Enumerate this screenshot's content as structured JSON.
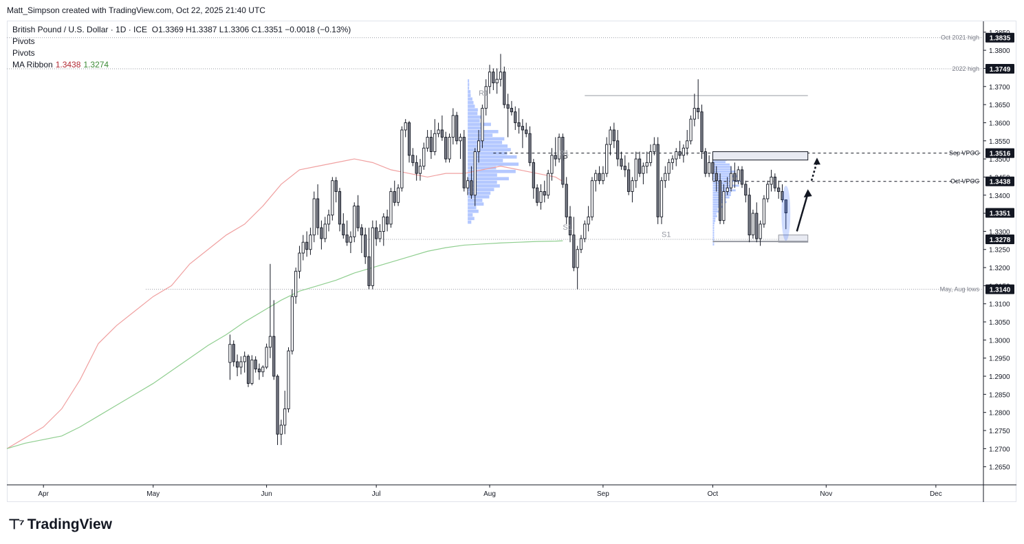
{
  "header": {
    "credit": "Matt_Simpson created with TradingView.com, Oct 22, 2025 21:40 UTC"
  },
  "legend": {
    "symbol": "British Pound / U.S. Dollar · 1D · ICE",
    "ohlc": "O1.3369  H1.3387  L1.3306  C1.3351  −0.0018 (−0.13%)",
    "pivots_1": "Pivots",
    "pivots_2": "Pivots",
    "ma_label": "MA Ribbon",
    "ma_fast": "1.3438",
    "ma_slow": "1.3274"
  },
  "logo": {
    "text": "TradingView"
  },
  "colors": {
    "up_candle": "#ffffff",
    "down_candle": "#787b86",
    "wick": "#131722",
    "ma_fast": "#f0a0a0",
    "ma_slow": "#8fce8f",
    "volume_profile": "#2962ff",
    "price_tag": "#131722",
    "grid_line": "#9598a1"
  },
  "chart_data": {
    "type": "candlestick",
    "ylim": [
      1.26,
      1.388
    ],
    "y_ticks": [
      "1.3850",
      "1.3800",
      "1.3750",
      "1.3700",
      "1.3650",
      "1.3600",
      "1.3550",
      "1.3500",
      "1.3450",
      "1.3400",
      "1.3350",
      "1.3300",
      "1.3250",
      "1.3200",
      "1.3150",
      "1.3100",
      "1.3050",
      "1.3000",
      "1.2950",
      "1.2900",
      "1.2850",
      "1.2800",
      "1.2750",
      "1.2700",
      "1.2650"
    ],
    "x_labels": [
      {
        "label": "Apr",
        "day": 5
      },
      {
        "label": "May",
        "day": 35
      },
      {
        "label": "Jun",
        "day": 66
      },
      {
        "label": "Jul",
        "day": 96
      },
      {
        "label": "Aug",
        "day": 127
      },
      {
        "label": "Sep",
        "day": 158
      },
      {
        "label": "Oct",
        "day": 188
      },
      {
        "label": "Nov",
        "day": 219
      },
      {
        "label": "Dec",
        "day": 249
      }
    ],
    "x_range": [
      -5,
      262
    ],
    "last_day": 208,
    "candles": [
      [
        -5,
        1.2938,
        1.3015,
        1.289,
        1.2988
      ],
      [
        -4,
        1.2988,
        1.2999,
        1.2927,
        1.294
      ],
      [
        -3,
        1.294,
        1.296,
        1.29,
        1.2925
      ],
      [
        -2,
        1.2925,
        1.2955,
        1.2905,
        1.294
      ],
      [
        -1,
        1.294,
        1.2968,
        1.291,
        1.2955
      ],
      [
        0,
        1.2955,
        1.296,
        1.287,
        1.288
      ],
      [
        1,
        1.288,
        1.2958,
        1.2875,
        1.2945
      ],
      [
        2,
        1.2945,
        1.2955,
        1.291,
        1.292
      ],
      [
        3,
        1.292,
        1.2935,
        1.289,
        1.2912
      ],
      [
        4,
        1.2912,
        1.293,
        1.2898,
        1.2925
      ],
      [
        5,
        1.2925,
        1.299,
        1.292,
        1.298
      ],
      [
        6,
        1.298,
        1.321,
        1.295,
        1.301
      ],
      [
        7,
        1.301,
        1.311,
        1.289,
        1.29
      ],
      [
        8,
        1.29,
        1.2905,
        1.271,
        1.274
      ],
      [
        9,
        1.274,
        1.278,
        1.271,
        1.2765
      ],
      [
        10,
        1.2765,
        1.286,
        1.274,
        1.281
      ],
      [
        11,
        1.281,
        1.298,
        1.28,
        1.297
      ],
      [
        12,
        1.297,
        1.314,
        1.296,
        1.312
      ],
      [
        13,
        1.312,
        1.32,
        1.31,
        1.319
      ],
      [
        14,
        1.319,
        1.326,
        1.317,
        1.324
      ],
      [
        15,
        1.324,
        1.329,
        1.322,
        1.327
      ],
      [
        16,
        1.327,
        1.33,
        1.323,
        1.325
      ],
      [
        17,
        1.325,
        1.331,
        1.3235,
        1.329
      ],
      [
        18,
        1.329,
        1.341,
        1.327,
        1.339
      ],
      [
        19,
        1.339,
        1.343,
        1.329,
        1.331
      ],
      [
        20,
        1.331,
        1.333,
        1.325,
        1.328
      ],
      [
        21,
        1.328,
        1.334,
        1.327,
        1.332
      ],
      [
        22,
        1.332,
        1.336,
        1.33,
        1.3345
      ],
      [
        23,
        1.3345,
        1.345,
        1.333,
        1.344
      ],
      [
        24,
        1.344,
        1.345,
        1.338,
        1.341
      ],
      [
        25,
        1.341,
        1.342,
        1.33,
        1.332
      ],
      [
        26,
        1.332,
        1.335,
        1.328,
        1.329
      ],
      [
        27,
        1.329,
        1.333,
        1.326,
        1.327
      ],
      [
        28,
        1.327,
        1.33,
        1.324,
        1.3285
      ],
      [
        29,
        1.3285,
        1.338,
        1.327,
        1.337
      ],
      [
        30,
        1.337,
        1.34,
        1.33,
        1.331
      ],
      [
        31,
        1.331,
        1.332,
        1.324,
        1.329
      ],
      [
        32,
        1.329,
        1.331,
        1.321,
        1.323
      ],
      [
        33,
        1.323,
        1.331,
        1.314,
        1.315
      ],
      [
        34,
        1.315,
        1.333,
        1.314,
        1.331
      ],
      [
        35,
        1.331,
        1.333,
        1.326,
        1.328
      ],
      [
        36,
        1.328,
        1.332,
        1.327,
        1.33
      ],
      [
        37,
        1.33,
        1.335,
        1.326,
        1.334
      ],
      [
        38,
        1.334,
        1.336,
        1.33,
        1.332
      ],
      [
        39,
        1.332,
        1.342,
        1.331,
        1.341
      ],
      [
        40,
        1.341,
        1.344,
        1.337,
        1.338
      ],
      [
        41,
        1.338,
        1.343,
        1.337,
        1.342
      ],
      [
        42,
        1.342,
        1.359,
        1.341,
        1.358
      ],
      [
        43,
        1.358,
        1.361,
        1.356,
        1.36
      ],
      [
        44,
        1.36,
        1.3605,
        1.349,
        1.351
      ],
      [
        45,
        1.351,
        1.353,
        1.348,
        1.349
      ],
      [
        46,
        1.349,
        1.351,
        1.344,
        1.346
      ],
      [
        47,
        1.346,
        1.35,
        1.344,
        1.348
      ],
      [
        48,
        1.348,
        1.3545,
        1.347,
        1.353
      ],
      [
        49,
        1.353,
        1.358,
        1.352,
        1.356
      ],
      [
        50,
        1.356,
        1.358,
        1.35,
        1.352
      ],
      [
        51,
        1.352,
        1.361,
        1.351,
        1.357
      ],
      [
        52,
        1.357,
        1.36,
        1.356,
        1.358
      ],
      [
        53,
        1.358,
        1.362,
        1.355,
        1.356
      ],
      [
        54,
        1.356,
        1.3575,
        1.349,
        1.35
      ],
      [
        55,
        1.35,
        1.357,
        1.349,
        1.356
      ],
      [
        56,
        1.356,
        1.364,
        1.354,
        1.362
      ],
      [
        57,
        1.362,
        1.363,
        1.354,
        1.355
      ],
      [
        58,
        1.355,
        1.357,
        1.35,
        1.356
      ],
      [
        59,
        1.356,
        1.358,
        1.341,
        1.342
      ],
      [
        60,
        1.342,
        1.345,
        1.34,
        1.344
      ],
      [
        61,
        1.344,
        1.348,
        1.339,
        1.34
      ],
      [
        62,
        1.34,
        1.353,
        1.337,
        1.352
      ],
      [
        63,
        1.352,
        1.358,
        1.349,
        1.355
      ],
      [
        64,
        1.355,
        1.365,
        1.353,
        1.364
      ],
      [
        65,
        1.364,
        1.372,
        1.362,
        1.37
      ],
      [
        66,
        1.37,
        1.376,
        1.368,
        1.374
      ],
      [
        67,
        1.374,
        1.375,
        1.369,
        1.371
      ],
      [
        68,
        1.371,
        1.375,
        1.368,
        1.372
      ],
      [
        69,
        1.372,
        1.379,
        1.37,
        1.374
      ],
      [
        70,
        1.374,
        1.3755,
        1.364,
        1.365
      ],
      [
        71,
        1.365,
        1.368,
        1.356,
        1.364
      ],
      [
        72,
        1.364,
        1.366,
        1.362,
        1.363
      ],
      [
        73,
        1.363,
        1.3645,
        1.358,
        1.36
      ],
      [
        74,
        1.36,
        1.364,
        1.357,
        1.359
      ],
      [
        75,
        1.359,
        1.361,
        1.353,
        1.358
      ],
      [
        76,
        1.358,
        1.36,
        1.356,
        1.357
      ],
      [
        77,
        1.357,
        1.359,
        1.348,
        1.349
      ],
      [
        78,
        1.349,
        1.35,
        1.339,
        1.342
      ],
      [
        79,
        1.342,
        1.343,
        1.337,
        1.338
      ],
      [
        80,
        1.338,
        1.343,
        1.336,
        1.341
      ],
      [
        81,
        1.341,
        1.344,
        1.338,
        1.34
      ],
      [
        82,
        1.34,
        1.347,
        1.339,
        1.346
      ],
      [
        83,
        1.346,
        1.353,
        1.344,
        1.351
      ],
      [
        84,
        1.351,
        1.356,
        1.348,
        1.35
      ],
      [
        85,
        1.35,
        1.357,
        1.349,
        1.356
      ],
      [
        86,
        1.356,
        1.357,
        1.342,
        1.343
      ],
      [
        87,
        1.343,
        1.345,
        1.332,
        1.334
      ],
      [
        88,
        1.334,
        1.337,
        1.327,
        1.329
      ],
      [
        89,
        1.329,
        1.334,
        1.319,
        1.32
      ],
      [
        90,
        1.32,
        1.326,
        1.314,
        1.325
      ],
      [
        91,
        1.325,
        1.329,
        1.324,
        1.328
      ],
      [
        92,
        1.328,
        1.333,
        1.327,
        1.332
      ],
      [
        93,
        1.332,
        1.337,
        1.33,
        1.334
      ],
      [
        94,
        1.334,
        1.345,
        1.333,
        1.344
      ],
      [
        95,
        1.344,
        1.347,
        1.341,
        1.346
      ],
      [
        96,
        1.346,
        1.348,
        1.343,
        1.344
      ],
      [
        97,
        1.344,
        1.348,
        1.343,
        1.346
      ],
      [
        98,
        1.346,
        1.356,
        1.345,
        1.354
      ],
      [
        99,
        1.354,
        1.359,
        1.351,
        1.358
      ],
      [
        100,
        1.358,
        1.36,
        1.353,
        1.355
      ],
      [
        101,
        1.355,
        1.358,
        1.348,
        1.35
      ],
      [
        102,
        1.35,
        1.352,
        1.347,
        1.348
      ],
      [
        103,
        1.348,
        1.351,
        1.345,
        1.347
      ],
      [
        104,
        1.347,
        1.349,
        1.34,
        1.341
      ],
      [
        105,
        1.341,
        1.345,
        1.338,
        1.344
      ],
      [
        106,
        1.344,
        1.352,
        1.342,
        1.35
      ],
      [
        107,
        1.35,
        1.352,
        1.345,
        1.346
      ],
      [
        108,
        1.346,
        1.349,
        1.343,
        1.348
      ],
      [
        109,
        1.348,
        1.352,
        1.346,
        1.349
      ],
      [
        110,
        1.349,
        1.354,
        1.348,
        1.352
      ],
      [
        111,
        1.352,
        1.356,
        1.351,
        1.354
      ],
      [
        112,
        1.354,
        1.356,
        1.332,
        1.334
      ],
      [
        113,
        1.334,
        1.345,
        1.332,
        1.344
      ],
      [
        114,
        1.344,
        1.348,
        1.342,
        1.346
      ],
      [
        115,
        1.346,
        1.35,
        1.344,
        1.349
      ],
      [
        116,
        1.349,
        1.351,
        1.347,
        1.35
      ],
      [
        117,
        1.35,
        1.353,
        1.348,
        1.352
      ],
      [
        118,
        1.352,
        1.355,
        1.35,
        1.351
      ],
      [
        119,
        1.351,
        1.354,
        1.349,
        1.353
      ],
      [
        120,
        1.353,
        1.358,
        1.351,
        1.355
      ],
      [
        121,
        1.355,
        1.362,
        1.354,
        1.361
      ],
      [
        122,
        1.361,
        1.368,
        1.359,
        1.364
      ],
      [
        123,
        1.364,
        1.372,
        1.361,
        1.363
      ],
      [
        124,
        1.363,
        1.365,
        1.35,
        1.352
      ],
      [
        125,
        1.352,
        1.353,
        1.345,
        1.346
      ],
      [
        126,
        1.346,
        1.351,
        1.345,
        1.349
      ],
      [
        127,
        1.349,
        1.35,
        1.344,
        1.346
      ],
      [
        128,
        1.346,
        1.348,
        1.341,
        1.344
      ],
      [
        129,
        1.344,
        1.346,
        1.332,
        1.333
      ],
      [
        130,
        1.333,
        1.343,
        1.332,
        1.341
      ],
      [
        131,
        1.341,
        1.345,
        1.34,
        1.342
      ],
      [
        132,
        1.342,
        1.348,
        1.341,
        1.346
      ],
      [
        133,
        1.346,
        1.349,
        1.342,
        1.344
      ],
      [
        134,
        1.344,
        1.348,
        1.343,
        1.347
      ],
      [
        135,
        1.347,
        1.348,
        1.342,
        1.343
      ],
      [
        136,
        1.343,
        1.344,
        1.338,
        1.34
      ],
      [
        137,
        1.34,
        1.342,
        1.327,
        1.329
      ],
      [
        138,
        1.329,
        1.336,
        1.328,
        1.335
      ],
      [
        139,
        1.335,
        1.338,
        1.327,
        1.328
      ],
      [
        140,
        1.328,
        1.333,
        1.326,
        1.332
      ],
      [
        141,
        1.332,
        1.34,
        1.331,
        1.339
      ],
      [
        142,
        1.339,
        1.344,
        1.338,
        1.343
      ],
      [
        143,
        1.343,
        1.347,
        1.341,
        1.345
      ],
      [
        144,
        1.345,
        1.346,
        1.341,
        1.342
      ],
      [
        145,
        1.342,
        1.344,
        1.339,
        1.341
      ],
      [
        146,
        1.341,
        1.343,
        1.338,
        1.3387
      ],
      [
        147,
        1.3387,
        1.3387,
        1.3306,
        1.3351
      ]
    ],
    "ma_fast": [
      [
        -5,
        1.27
      ],
      [
        0,
        1.273
      ],
      [
        5,
        1.276
      ],
      [
        10,
        1.281
      ],
      [
        15,
        1.289
      ],
      [
        20,
        1.299
      ],
      [
        25,
        1.304
      ],
      [
        30,
        1.308
      ],
      [
        35,
        1.312
      ],
      [
        40,
        1.315
      ],
      [
        45,
        1.321
      ],
      [
        50,
        1.325
      ],
      [
        55,
        1.329
      ],
      [
        60,
        1.332
      ],
      [
        65,
        1.337
      ],
      [
        70,
        1.343
      ],
      [
        75,
        1.347
      ],
      [
        80,
        1.348
      ],
      [
        85,
        1.349
      ],
      [
        90,
        1.35
      ],
      [
        95,
        1.349
      ],
      [
        100,
        1.347
      ],
      [
        105,
        1.346
      ],
      [
        110,
        1.345
      ],
      [
        115,
        1.346
      ],
      [
        120,
        1.346
      ],
      [
        125,
        1.347
      ],
      [
        130,
        1.348
      ],
      [
        135,
        1.347
      ],
      [
        140,
        1.346
      ],
      [
        145,
        1.345
      ],
      [
        147,
        1.3438
      ]
    ],
    "ma_slow": [
      [
        -5,
        1.27
      ],
      [
        0,
        1.2715
      ],
      [
        5,
        1.2725
      ],
      [
        10,
        1.2735
      ],
      [
        15,
        1.276
      ],
      [
        20,
        1.279
      ],
      [
        25,
        1.282
      ],
      [
        30,
        1.285
      ],
      [
        35,
        1.288
      ],
      [
        40,
        1.2915
      ],
      [
        45,
        1.295
      ],
      [
        50,
        1.2985
      ],
      [
        55,
        1.3015
      ],
      [
        60,
        1.305
      ],
      [
        65,
        1.308
      ],
      [
        70,
        1.311
      ],
      [
        75,
        1.3135
      ],
      [
        80,
        1.315
      ],
      [
        85,
        1.3165
      ],
      [
        90,
        1.3185
      ],
      [
        95,
        1.32
      ],
      [
        100,
        1.3215
      ],
      [
        105,
        1.323
      ],
      [
        110,
        1.3245
      ],
      [
        115,
        1.3255
      ],
      [
        120,
        1.3262
      ],
      [
        125,
        1.3265
      ],
      [
        130,
        1.3268
      ],
      [
        135,
        1.327
      ],
      [
        140,
        1.3272
      ],
      [
        145,
        1.3273
      ],
      [
        147,
        1.3274
      ]
    ],
    "levels": [
      {
        "label": "Oct 2021 high",
        "value": 1.3835,
        "tag": "1.3835"
      },
      {
        "label": "2022 high",
        "value": 1.3749,
        "tag": "1.3749"
      },
      {
        "label": "Sep VPOC",
        "value": 1.3516,
        "tag": "1.3516"
      },
      {
        "label": "Oct VPOC",
        "value": 1.3438,
        "tag": "1.3438"
      },
      {
        "label": "",
        "value": 1.3351,
        "tag": "1.3351"
      },
      {
        "label": "",
        "value": 1.3278,
        "tag": "1.3278"
      },
      {
        "label": "May, Aug lows",
        "value": 1.314,
        "tag": "1.3140"
      }
    ],
    "pivot_labels": [
      {
        "text": "R1",
        "day": 124,
        "value": 1.3675
      },
      {
        "text": "P",
        "day": 147,
        "value": 1.3495
      },
      {
        "text": "R1",
        "day": 146,
        "value": 1.351
      },
      {
        "text": "S1",
        "day": 147,
        "value": 1.3305
      },
      {
        "text": "S1",
        "day": 174,
        "value": 1.3285
      }
    ]
  }
}
